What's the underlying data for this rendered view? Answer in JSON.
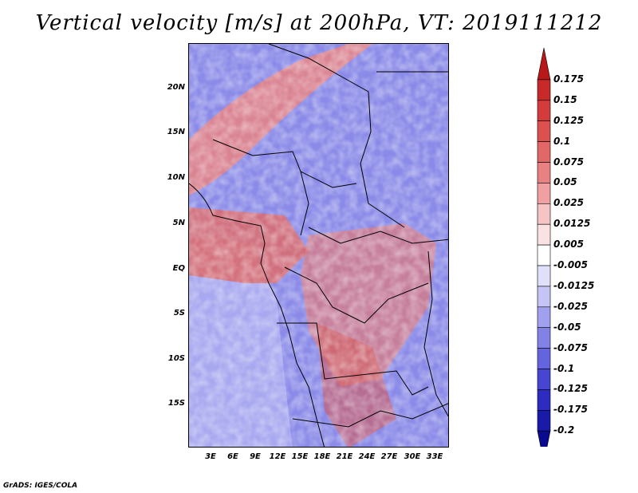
{
  "title": "Vertical velocity [m/s] at 200hPa, VT: 2019111212",
  "credit": "GrADS: IGES/COLA",
  "map": {
    "lat_labels": [
      "20N",
      "15N",
      "10N",
      "5N",
      "EQ",
      "5S",
      "10S",
      "15S"
    ],
    "lon_labels": [
      "3E",
      "6E",
      "9E",
      "12E",
      "15E",
      "18E",
      "21E",
      "24E",
      "27E",
      "30E",
      "33E"
    ]
  },
  "colorbar": {
    "labels": [
      "0.175",
      "0.15",
      "0.125",
      "0.1",
      "0.075",
      "0.05",
      "0.025",
      "0.0125",
      "0.005",
      "-0.005",
      "-0.0125",
      "-0.025",
      "-0.05",
      "-0.075",
      "-0.1",
      "-0.125",
      "-0.175",
      "-0.2"
    ],
    "colors": [
      "#b81818",
      "#c82a2a",
      "#d43c3c",
      "#dc5050",
      "#e26868",
      "#e88282",
      "#f0a0a0",
      "#f6c4c4",
      "#fbe2e2",
      "#ffffff",
      "#e0e0fb",
      "#c4c4f6",
      "#a0a0ee",
      "#8282e6",
      "#6464de",
      "#4646d2",
      "#2c2cc0",
      "#1a1aa8",
      "#0a0a90"
    ]
  }
}
